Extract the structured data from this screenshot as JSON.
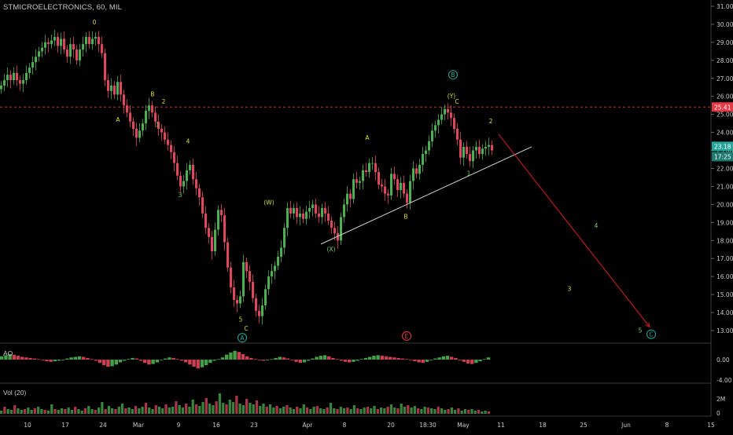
{
  "title": "STMICROELECTRONICS, 60, MIL",
  "colors": {
    "background": "#000000",
    "up": "#4caf50",
    "down": "#e0475c",
    "wave_label": "#d6e02c",
    "wave_label_alt": "#7cd05c",
    "circled": "#26a69a",
    "circled_E": "#e53946",
    "projection": "#b71c1c",
    "trendline": "#cfcfcf",
    "price_line": "#e53946",
    "axis_text": "#c8c8c8",
    "current_price_bg": "#26a69a"
  },
  "chart_data": [
    {
      "type": "line",
      "name": "price",
      "y_ticks": [
        "13.00",
        "14.00",
        "15.00",
        "16.00",
        "17.00",
        "18.00",
        "19.00",
        "20.00",
        "21.00",
        "22.00",
        "23.00",
        "24.00",
        "25.00",
        "26.00",
        "27.00",
        "28.00",
        "29.00",
        "30.00",
        "31.00"
      ],
      "ylim": [
        12.3,
        31.3
      ],
      "x_ticks": [
        "10",
        "17",
        "24",
        "Mar",
        "9",
        "16",
        "23",
        "Apr",
        "8",
        "20",
        "18:30",
        "May",
        "11",
        "18",
        "25",
        "Jun",
        "8",
        "15"
      ],
      "series": [
        {
          "x": [
            0,
            4,
            8,
            12,
            16,
            20,
            24,
            28,
            32,
            36,
            40,
            44,
            48,
            52,
            56,
            60,
            64,
            68,
            72,
            76,
            80,
            84,
            88,
            92,
            96,
            100,
            104,
            108,
            112,
            116,
            120,
            124,
            128,
            132,
            136,
            140,
            144,
            148,
            152,
            156,
            160,
            164,
            168,
            172,
            176,
            180,
            184,
            188,
            192,
            196,
            200,
            204,
            208,
            212,
            216,
            220,
            224,
            228,
            232,
            236,
            240,
            244,
            248,
            252,
            256,
            260,
            264,
            268,
            272,
            276,
            280,
            284,
            288,
            292,
            296,
            300,
            304,
            308,
            312,
            316,
            320,
            324,
            328,
            332,
            336,
            340,
            344,
            348,
            352,
            356,
            360,
            364,
            368,
            372,
            376,
            380,
            384,
            388,
            392,
            396,
            400,
            404,
            408,
            412,
            416,
            420,
            424,
            428,
            432,
            436,
            440,
            444,
            448,
            452,
            456,
            460,
            464,
            468,
            472,
            476,
            480,
            484,
            488,
            492,
            496,
            500,
            504,
            508,
            512,
            516,
            520,
            524,
            528,
            532,
            536,
            540,
            544,
            548,
            552,
            556,
            560,
            564,
            568,
            572,
            576,
            580,
            584,
            588,
            592,
            596,
            600,
            604,
            608,
            612,
            616,
            620,
            624
          ],
          "y": [
            26.6,
            26.9,
            27.2,
            26.9,
            27.3,
            26.9,
            26.7,
            26.9,
            27.3,
            27.6,
            27.9,
            28.2,
            28.5,
            28.7,
            29.0,
            28.9,
            29.1,
            29.3,
            28.8,
            29.2,
            28.6,
            28.2,
            28.9,
            28.6,
            28.0,
            28.6,
            28.9,
            29.3,
            28.9,
            29.2,
            29.3,
            28.9,
            28.4,
            26.9,
            26.3,
            26.6,
            26.1,
            26.8,
            26.1,
            25.5,
            25.1,
            24.6,
            24.2,
            23.7,
            24.1,
            24.5,
            25.2,
            25.5,
            25.1,
            24.6,
            24.2,
            24.0,
            23.6,
            23.3,
            22.9,
            22.3,
            21.6,
            21.0,
            21.3,
            21.9,
            22.2,
            21.4,
            20.9,
            20.4,
            19.5,
            18.7,
            18.2,
            17.4,
            18.6,
            19.7,
            19.4,
            17.9,
            16.5,
            15.4,
            14.7,
            14.5,
            14.9,
            16.8,
            16.3,
            15.7,
            14.8,
            14.1,
            13.8,
            14.4,
            15.3,
            16.0,
            16.3,
            16.6,
            17.1,
            17.6,
            18.7,
            19.8,
            19.5,
            19.8,
            19.3,
            19.5,
            19.2,
            19.6,
            19.8,
            20.0,
            19.5,
            19.3,
            19.8,
            19.5,
            19.1,
            18.7,
            18.4,
            18.0,
            19.3,
            20.0,
            20.6,
            20.3,
            21.4,
            21.2,
            21.3,
            21.9,
            21.8,
            22.3,
            22.3,
            21.8,
            21.1,
            21.0,
            20.6,
            20.5,
            21.7,
            21.4,
            20.8,
            21.2,
            20.6,
            20.1,
            21.3,
            22.0,
            21.7,
            22.2,
            22.8,
            23.0,
            23.5,
            24.1,
            24.4,
            24.7,
            25.0,
            25.3,
            25.1,
            24.8,
            24.2,
            23.6,
            22.6,
            23.2,
            22.8,
            22.4,
            23.0,
            23.2,
            22.8,
            23.1,
            23.2,
            23.3,
            23.0
          ]
        }
      ],
      "current_price": "23.18",
      "countdown": "17:25",
      "hline_label": "25.41",
      "hline_value": 25.41,
      "wave_labels": [
        {
          "t": "0",
          "x": 120,
          "y": 30.0,
          "c": "y"
        },
        {
          "t": "A",
          "x": 150,
          "y": 24.6,
          "c": "y"
        },
        {
          "t": "B",
          "x": 194,
          "y": 26.0,
          "c": "y"
        },
        {
          "t": "2",
          "x": 208,
          "y": 25.6,
          "c": "y"
        },
        {
          "t": "1",
          "x": 200,
          "y": 24.3,
          "c": "g"
        },
        {
          "t": "4",
          "x": 239,
          "y": 23.4,
          "c": "y"
        },
        {
          "t": "3",
          "x": 229,
          "y": 20.4,
          "c": "g"
        },
        {
          "t": "5",
          "x": 306,
          "y": 13.5,
          "c": "y"
        },
        {
          "t": "C",
          "x": 313,
          "y": 13.0,
          "c": "y"
        },
        {
          "t": "(W)",
          "x": 342,
          "y": 20.0,
          "c": "y"
        },
        {
          "t": "(X)",
          "x": 421,
          "y": 17.4,
          "c": "g"
        },
        {
          "t": "A",
          "x": 467,
          "y": 23.6,
          "c": "y"
        },
        {
          "t": "B",
          "x": 516,
          "y": 19.2,
          "c": "y"
        },
        {
          "t": "(Y)",
          "x": 574,
          "y": 25.9,
          "c": "y"
        },
        {
          "t": "C",
          "x": 581,
          "y": 25.6,
          "c": "y"
        },
        {
          "t": "1",
          "x": 596,
          "y": 21.6,
          "c": "g"
        },
        {
          "t": "2",
          "x": 624,
          "y": 24.5,
          "c": "y"
        },
        {
          "t": "4",
          "x": 758,
          "y": 18.7,
          "c": "g"
        },
        {
          "t": "3",
          "x": 724,
          "y": 15.2,
          "c": "y"
        },
        {
          "t": "5",
          "x": 814,
          "y": 12.9,
          "c": "g"
        }
      ],
      "circled_labels": [
        {
          "t": "A",
          "x": 308,
          "y": 12.6,
          "c": "teal"
        },
        {
          "t": "B",
          "x": 576,
          "y": 27.2,
          "c": "teal"
        },
        {
          "t": "C",
          "x": 828,
          "y": 12.8,
          "c": "teal"
        },
        {
          "t": "E",
          "x": 517,
          "y": 12.7,
          "c": "red"
        }
      ],
      "trendline": {
        "from": [
          408,
          17.8
        ],
        "to": [
          676,
          23.2
        ]
      },
      "projection": {
        "from": [
          634,
          23.9
        ],
        "to": [
          826,
          13.2
        ]
      }
    },
    {
      "type": "bar",
      "name": "AO",
      "y_ticks": [
        "0.00",
        "-4.00"
      ],
      "values": [
        0.6,
        0.8,
        1.0,
        0.9,
        0.7,
        0.5,
        0.4,
        0.3,
        0.2,
        0.1,
        -0.1,
        -0.3,
        -0.4,
        -0.3,
        -0.2,
        -0.1,
        0.2,
        0.4,
        0.5,
        0.6,
        0.5,
        0.3,
        0.1,
        -0.2,
        -0.6,
        -1.0,
        -1.3,
        -1.2,
        -0.9,
        -0.5,
        -0.2,
        0.1,
        0.3,
        0.2,
        -0.2,
        -0.6,
        -0.9,
        -0.8,
        -0.5,
        -0.1,
        0.2,
        0.4,
        0.3,
        0.1,
        -0.2,
        -0.5,
        -0.9,
        -1.3,
        -1.6,
        -1.4,
        -1.0,
        -0.6,
        -0.2,
        0.1,
        0.4,
        0.9,
        1.3,
        1.6,
        1.4,
        1.0,
        0.6,
        0.3,
        0.1,
        -0.1,
        -0.2,
        -0.1,
        0.1,
        0.3,
        0.5,
        0.4,
        0.2,
        -0.1,
        -0.4,
        -0.6,
        -0.5,
        -0.2,
        0.2,
        0.5,
        0.7,
        0.8,
        0.6,
        0.3,
        0.1,
        -0.2,
        -0.4,
        -0.5,
        -0.4,
        -0.2,
        0.1,
        0.3,
        0.5,
        0.7,
        0.8,
        0.7,
        0.6,
        0.5,
        0.4,
        0.3,
        0.2,
        0.1,
        -0.1,
        -0.3,
        -0.5,
        -0.6,
        -0.4,
        -0.1,
        0.2,
        0.4,
        0.6,
        0.7,
        0.5,
        0.3,
        -0.1,
        -0.4,
        -0.7,
        -0.8,
        -0.6,
        -0.3,
        0.1,
        0.4
      ],
      "color_rule": "green when rising, red when falling"
    },
    {
      "type": "bar",
      "name": "Vol (20)",
      "y_ticks": [
        "2M",
        "0"
      ],
      "values": [
        0.4,
        0.9,
        0.6,
        0.5,
        1.1,
        0.7,
        0.5,
        0.6,
        0.8,
        0.5,
        0.7,
        0.9,
        0.6,
        0.5,
        0.4,
        1.2,
        0.6,
        0.5,
        0.7,
        0.6,
        0.8,
        0.5,
        0.9,
        0.6,
        0.4,
        0.7,
        1.0,
        0.6,
        0.5,
        0.8,
        1.5,
        0.6,
        1.0,
        0.7,
        0.6,
        0.9,
        1.3,
        0.7,
        0.8,
        0.6,
        1.0,
        0.7,
        0.9,
        1.4,
        0.8,
        0.6,
        1.1,
        0.9,
        0.7,
        1.2,
        0.8,
        0.9,
        1.6,
        1.1,
        0.8,
        1.3,
        0.9,
        1.8,
        1.2,
        1.0,
        1.5,
        2.0,
        1.3,
        1.1,
        1.6,
        2.6,
        1.4,
        1.2,
        1.8,
        1.5,
        2.3,
        1.3,
        1.1,
        1.9,
        1.4,
        1.2,
        1.7,
        1.0,
        1.3,
        0.9,
        1.2,
        0.8,
        1.0,
        0.7,
        0.9,
        1.1,
        0.8,
        0.6,
        0.9,
        0.7,
        1.2,
        0.8,
        0.6,
        0.9,
        1.0,
        0.7,
        0.6,
        0.8,
        1.4,
        0.7,
        0.6,
        0.9,
        0.7,
        0.8,
        0.6,
        1.1,
        0.7,
        0.6,
        0.8,
        0.9,
        0.7,
        1.0,
        0.6,
        0.8,
        0.7,
        0.9,
        1.2,
        0.8,
        0.7,
        1.3,
        0.9,
        1.1,
        0.8,
        1.0,
        0.7,
        0.6,
        0.9,
        0.8,
        0.7,
        0.6,
        0.9,
        0.7,
        0.5,
        0.6,
        0.8,
        0.5,
        0.7,
        0.4,
        0.6,
        0.5,
        0.6,
        0.4,
        0.5,
        0.3,
        0.4,
        0.3
      ]
    }
  ]
}
